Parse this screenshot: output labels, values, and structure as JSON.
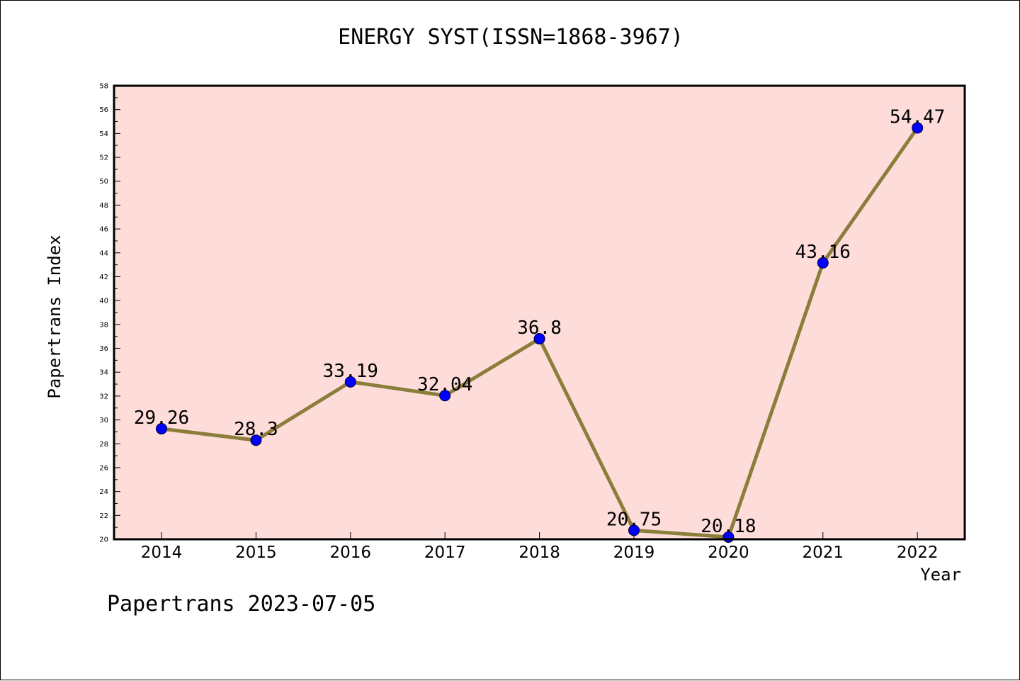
{
  "chart_data": {
    "type": "line",
    "title": "ENERGY SYST(ISSN=1868-3967)",
    "xlabel": "Year",
    "ylabel": "Papertrans Index",
    "categories": [
      "2014",
      "2015",
      "2016",
      "2017",
      "2018",
      "2019",
      "2020",
      "2021",
      "2022"
    ],
    "series": [
      {
        "values": [
          29.26,
          28.3,
          33.19,
          32.04,
          36.8,
          20.75,
          20.18,
          43.16,
          54.47
        ],
        "labels": [
          "29.26",
          "28.3",
          "33.19",
          "32.04",
          "36.8",
          "20.75",
          "20.18",
          "43.16",
          "54.47"
        ],
        "line_color": "#8B7D3A",
        "marker_color": "#0000FF"
      }
    ],
    "ylim": [
      20,
      58
    ],
    "yticks": [
      20,
      22,
      24,
      26,
      28,
      30,
      32,
      34,
      36,
      38,
      40,
      42,
      44,
      46,
      48,
      50,
      52,
      54,
      56,
      58
    ],
    "plot_background": "#FDDCDA",
    "grid": false
  },
  "footer": "Papertrans 2023-07-05"
}
